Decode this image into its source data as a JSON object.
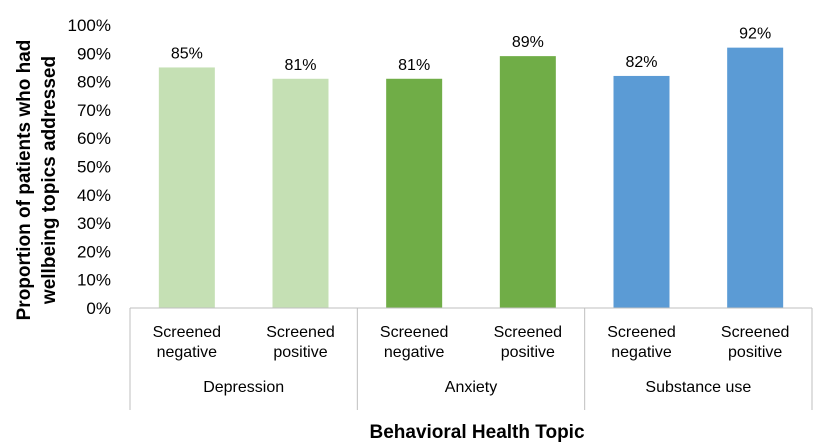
{
  "chart_data": {
    "type": "bar",
    "title": "",
    "xlabel": "Behavioral Health Topic",
    "ylabel_lines": [
      "Proportion of patients who had",
      "wellbeing topics addressed"
    ],
    "ylim": [
      0,
      100
    ],
    "yticks": [
      0,
      10,
      20,
      30,
      40,
      50,
      60,
      70,
      80,
      90,
      100
    ],
    "ytick_labels": [
      "0%",
      "10%",
      "20%",
      "30%",
      "40%",
      "50%",
      "60%",
      "70%",
      "80%",
      "90%",
      "100%"
    ],
    "grid": false,
    "legend": "none",
    "groups": [
      "Depression",
      "Anxiety",
      "Substance use"
    ],
    "bars": [
      {
        "group": "Depression",
        "label_lines": [
          "Screened",
          "negative"
        ],
        "value": 85,
        "value_label": "85%",
        "color": "#c5e0b4"
      },
      {
        "group": "Depression",
        "label_lines": [
          "Screened",
          "positive"
        ],
        "value": 81,
        "value_label": "81%",
        "color": "#c5e0b4"
      },
      {
        "group": "Anxiety",
        "label_lines": [
          "Screened",
          "negative"
        ],
        "value": 81,
        "value_label": "81%",
        "color": "#70ad47"
      },
      {
        "group": "Anxiety",
        "label_lines": [
          "Screened",
          "positive"
        ],
        "value": 89,
        "value_label": "89%",
        "color": "#70ad47"
      },
      {
        "group": "Substance use",
        "label_lines": [
          "Screened",
          "negative"
        ],
        "value": 82,
        "value_label": "82%",
        "color": "#5b9bd5"
      },
      {
        "group": "Substance use",
        "label_lines": [
          "Screened",
          "positive"
        ],
        "value": 92,
        "value_label": "92%",
        "color": "#5b9bd5"
      }
    ]
  }
}
